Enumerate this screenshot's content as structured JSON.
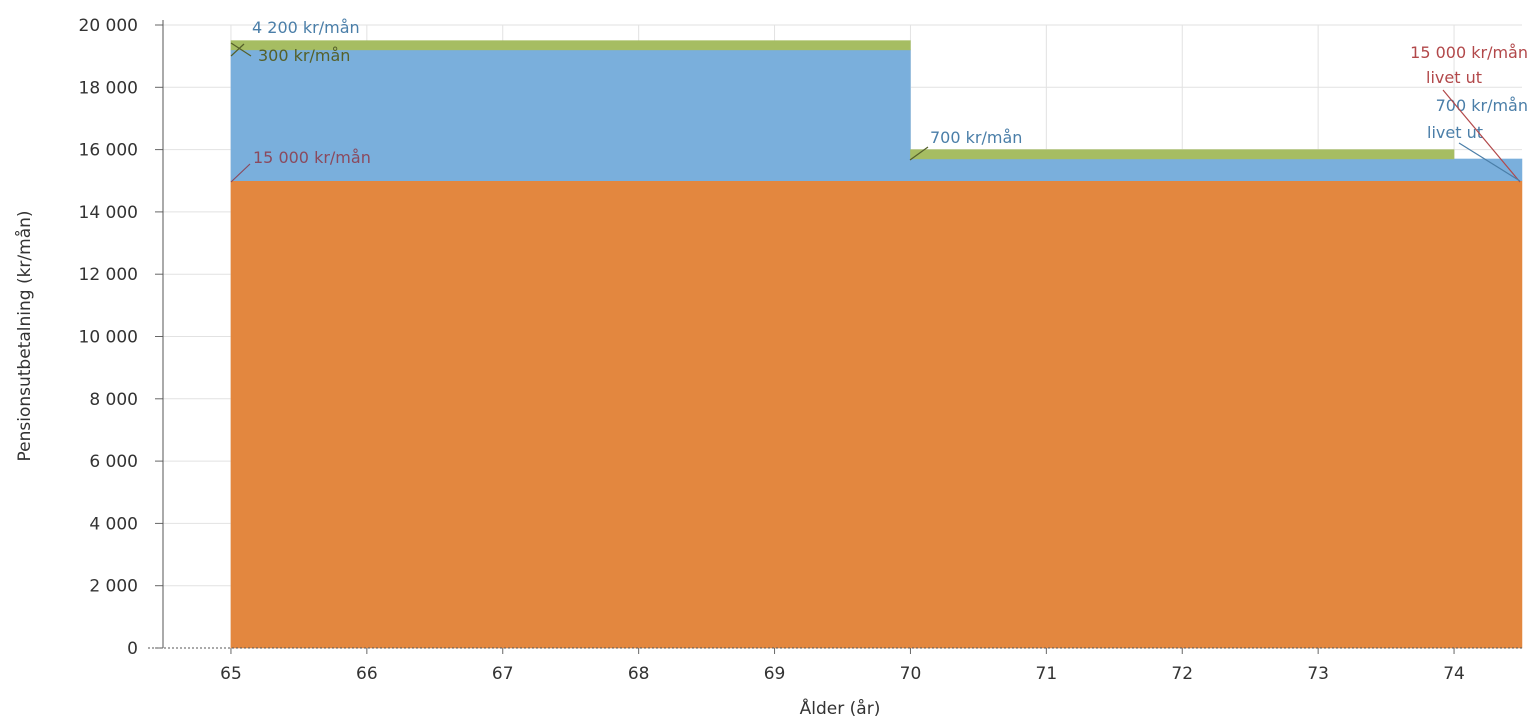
{
  "chart_data": {
    "type": "area",
    "xlabel": "Ålder (år)",
    "ylabel": "Pensionsutbetalning (kr/mån)",
    "xlim": [
      64.5,
      74.5
    ],
    "ylim": [
      0,
      20000
    ],
    "x_ticks": [
      "65",
      "66",
      "67",
      "68",
      "69",
      "70",
      "71",
      "72",
      "73",
      "74"
    ],
    "y_ticks": [
      "0",
      "2 000",
      "4 000",
      "6 000",
      "8 000",
      "10 000",
      "12 000",
      "14 000",
      "16 000",
      "18 000",
      "20 000"
    ],
    "grid": true,
    "stacking": "stacked",
    "series": [
      {
        "color": "#e3873f",
        "segments": [
          {
            "x": [
              65,
              74.5
            ],
            "value": 15000
          }
        ]
      },
      {
        "color": "#7aafdc",
        "segments": [
          {
            "x": [
              65,
              70
            ],
            "value": 4200
          },
          {
            "x": [
              70,
              74.5
            ],
            "value": 700
          }
        ]
      },
      {
        "color": "#a6bd62",
        "segments": [
          {
            "x": [
              65,
              70
            ],
            "value": 300
          },
          {
            "x": [
              70,
              74
            ],
            "value": 300
          }
        ]
      }
    ],
    "annotations": [
      {
        "text": "4 200 kr/mån",
        "color": "#4a7ea8"
      },
      {
        "text": "300 kr/mån",
        "color": "#55602a"
      },
      {
        "text": "15 000 kr/mån",
        "color": "#8a4a5e"
      },
      {
        "text": "700 kr/mån",
        "color": "#4a7ea8"
      },
      {
        "text": "15 000 kr/mån",
        "color": "#b2484a"
      },
      {
        "text": "livet ut",
        "color": "#b2484a"
      },
      {
        "text": "700 kr/mån",
        "color": "#4a7ea8"
      },
      {
        "text": "livet ut",
        "color": "#4a7ea8"
      }
    ]
  }
}
